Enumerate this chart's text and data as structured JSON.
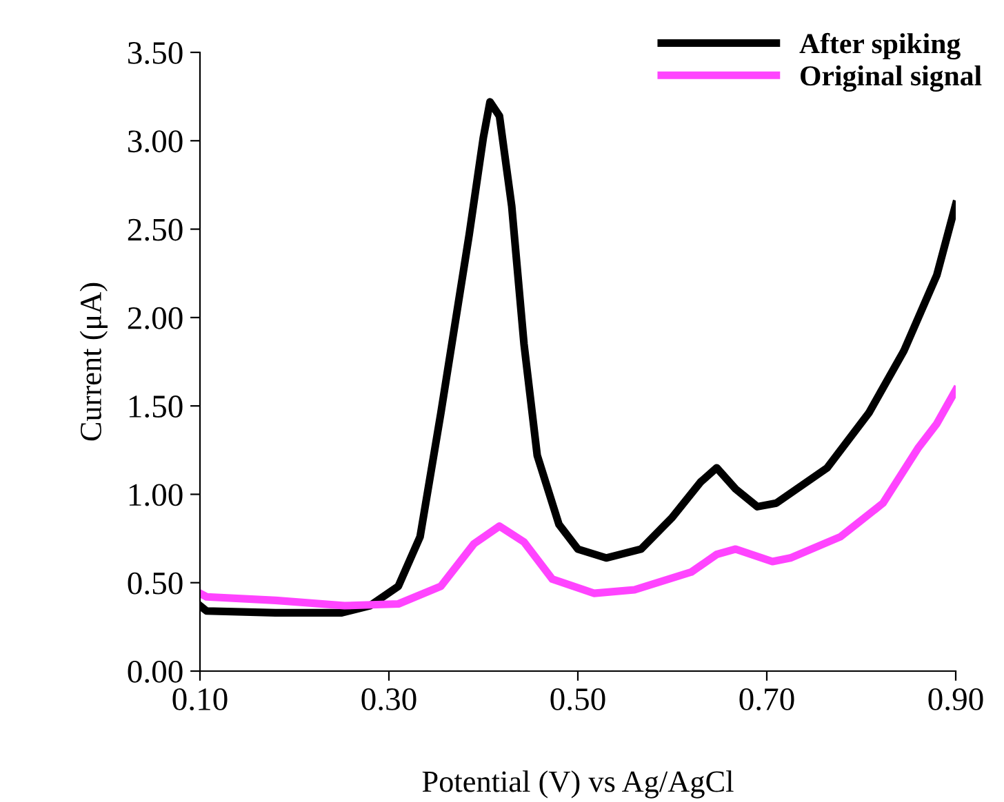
{
  "chart_data": {
    "type": "line",
    "xlabel": "Potential (V) vs Ag/AgCl",
    "ylabel": "Current (μA)",
    "xlim": [
      0.1,
      0.9
    ],
    "xticks": [
      {
        "value": 0.1,
        "label": "0.10"
      },
      {
        "value": 0.3,
        "label": "0.30"
      },
      {
        "value": 0.5,
        "label": "0.50"
      },
      {
        "value": 0.7,
        "label": "0.70"
      },
      {
        "value": 0.9,
        "label": "0.90"
      }
    ],
    "ylim": [
      0,
      3.5
    ],
    "yticks": [
      {
        "value": 0,
        "label": "0.00"
      },
      {
        "value": 0.5,
        "label": "0.50"
      },
      {
        "value": 1,
        "label": "1.00"
      },
      {
        "value": 1.5,
        "label": "1.50"
      },
      {
        "value": 2,
        "label": "2.00"
      },
      {
        "value": 2.5,
        "label": "2.50"
      },
      {
        "value": 3,
        "label": "3.00"
      },
      {
        "value": 3.5,
        "label": "3.50"
      }
    ],
    "grid": false,
    "legend": "top right",
    "marker": "none",
    "line_style": "solid",
    "series": [
      {
        "name": "After spiking",
        "color": "#000000",
        "x": [
          0.1,
          0.107,
          0.18,
          0.25,
          0.28,
          0.31,
          0.333,
          0.355,
          0.385,
          0.4,
          0.407,
          0.417,
          0.43,
          0.443,
          0.457,
          0.48,
          0.5,
          0.53,
          0.567,
          0.6,
          0.63,
          0.647,
          0.667,
          0.69,
          0.71,
          0.764,
          0.808,
          0.845,
          0.88,
          0.9
        ],
        "values": [
          0.37,
          0.34,
          0.33,
          0.33,
          0.37,
          0.48,
          0.76,
          1.46,
          2.47,
          3.02,
          3.22,
          3.14,
          2.63,
          1.85,
          1.22,
          0.83,
          0.69,
          0.64,
          0.69,
          0.87,
          1.07,
          1.15,
          1.03,
          0.93,
          0.95,
          1.15,
          1.46,
          1.81,
          2.24,
          2.64
        ]
      },
      {
        "name": "Original signal",
        "color": "#ff44ff",
        "x": [
          0.1,
          0.107,
          0.18,
          0.253,
          0.31,
          0.355,
          0.39,
          0.417,
          0.443,
          0.473,
          0.517,
          0.56,
          0.62,
          0.647,
          0.667,
          0.706,
          0.725,
          0.778,
          0.823,
          0.86,
          0.88,
          0.9
        ],
        "values": [
          0.44,
          0.42,
          0.4,
          0.37,
          0.38,
          0.48,
          0.72,
          0.82,
          0.73,
          0.52,
          0.44,
          0.46,
          0.56,
          0.66,
          0.69,
          0.62,
          0.64,
          0.76,
          0.95,
          1.26,
          1.4,
          1.59
        ]
      }
    ]
  }
}
